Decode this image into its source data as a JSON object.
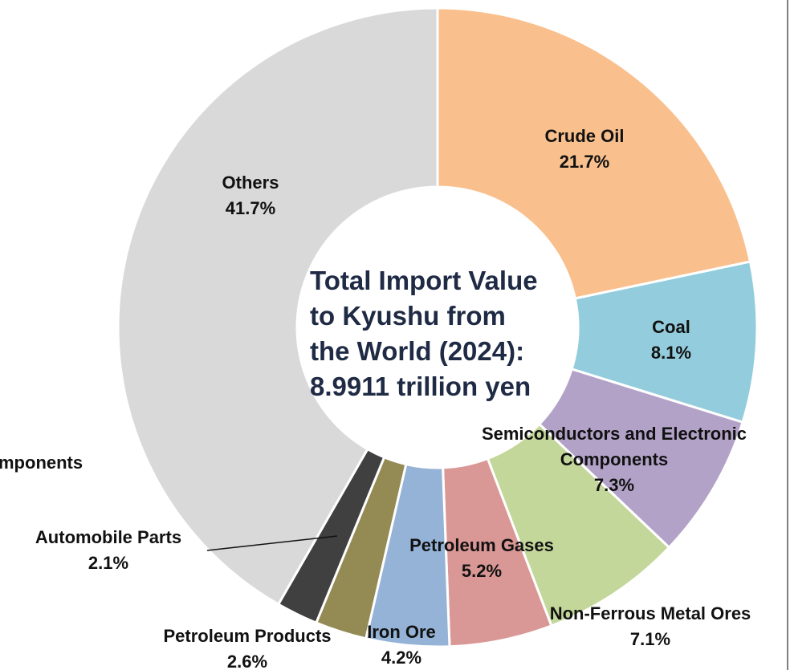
{
  "chart_data": {
    "type": "donut",
    "categories": [
      "Crude Oil",
      "Coal",
      "Semiconductors and Electronic Components",
      "Non-Ferrous Metal Ores",
      "Petroleum Gases",
      "Iron Ore",
      "Petroleum Products",
      "Automobile Parts",
      "Others"
    ],
    "values": [
      21.7,
      8.1,
      7.3,
      7.1,
      5.2,
      4.2,
      2.6,
      2.1,
      41.7
    ],
    "value_labels": [
      "21.7%",
      "8.1%",
      "7.3%",
      "7.1%",
      "5.2%",
      "4.2%",
      "2.6%",
      "2.1%",
      "41.7%"
    ],
    "colors": [
      "#f9c08e",
      "#93cddd",
      "#b3a2c8",
      "#c4d79b",
      "#d99795",
      "#95b3d7",
      "#948a54",
      "#404040",
      "#d9d9d9"
    ],
    "center_text": [
      "Total Import Value",
      "to Kyushu from",
      "the World (2024):",
      "8.9911 trillion yen"
    ],
    "annotations": [
      "mponents"
    ]
  }
}
